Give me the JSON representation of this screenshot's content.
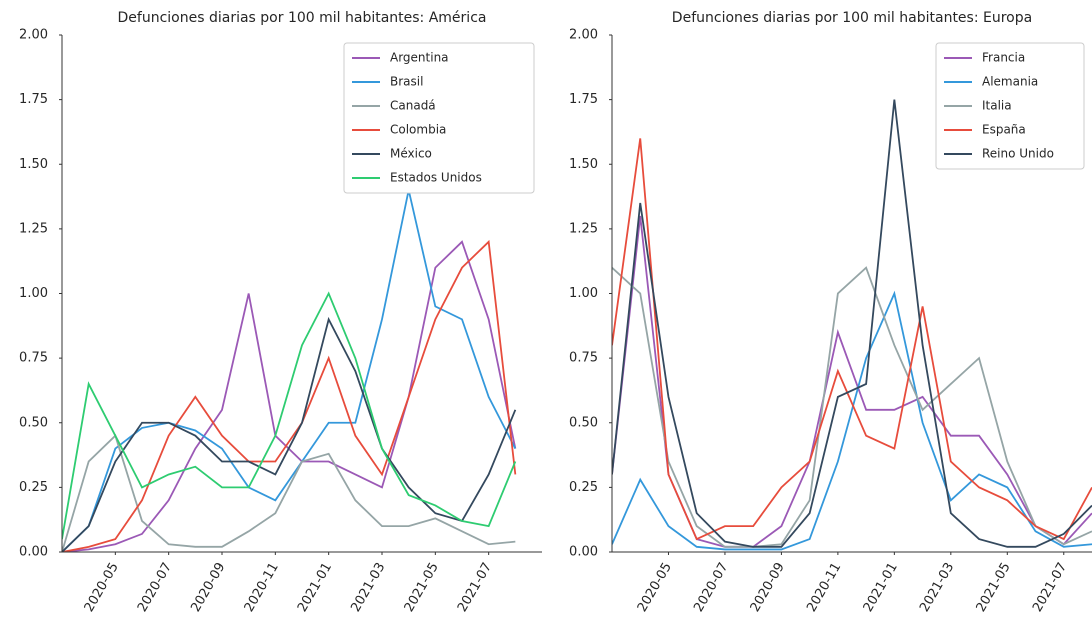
{
  "chart_data": [
    {
      "type": "line",
      "title": "Defunciones diarias por 100 mil habitantes: América",
      "x": [
        "2020-03",
        "2020-04",
        "2020-05",
        "2020-06",
        "2020-07",
        "2020-08",
        "2020-09",
        "2020-10",
        "2020-11",
        "2020-12",
        "2021-01",
        "2021-02",
        "2021-03",
        "2021-04",
        "2021-05",
        "2021-06",
        "2021-07",
        "2021-08"
      ],
      "xlim": [
        "2020-03",
        "2021-09"
      ],
      "xticks": [
        "2020-05",
        "2020-07",
        "2020-09",
        "2020-11",
        "2021-01",
        "2021-03",
        "2021-05",
        "2021-07"
      ],
      "ylim": [
        0,
        2
      ],
      "yticks": [
        {
          "value": 0,
          "label": "0.00"
        },
        {
          "value": 0.25,
          "label": "0.25"
        },
        {
          "value": 0.5,
          "label": "0.50"
        },
        {
          "value": 0.75,
          "label": "0.75"
        },
        {
          "value": 1,
          "label": "1.00"
        },
        {
          "value": 1.25,
          "label": "1.25"
        },
        {
          "value": 1.5,
          "label": "1.50"
        },
        {
          "value": 1.75,
          "label": "1.75"
        },
        {
          "value": 2,
          "label": "2.00"
        }
      ],
      "legend": "upper right",
      "series": [
        {
          "name": "Argentina",
          "color": "#9b59b6",
          "values": [
            0,
            0.01,
            0.03,
            0.07,
            0.2,
            0.4,
            0.55,
            1.0,
            0.45,
            0.35,
            0.35,
            0.3,
            0.25,
            0.6,
            1.1,
            1.2,
            0.9,
            0.4
          ]
        },
        {
          "name": "Brasil",
          "color": "#3498db",
          "values": [
            0,
            0.1,
            0.4,
            0.48,
            0.5,
            0.47,
            0.4,
            0.25,
            0.2,
            0.35,
            0.5,
            0.5,
            0.9,
            1.4,
            0.95,
            0.9,
            0.6,
            0.4
          ]
        },
        {
          "name": "Canadá",
          "color": "#95a5a6",
          "values": [
            0,
            0.35,
            0.45,
            0.12,
            0.03,
            0.02,
            0.02,
            0.08,
            0.15,
            0.35,
            0.38,
            0.2,
            0.1,
            0.1,
            0.13,
            0.08,
            0.03,
            0.04
          ]
        },
        {
          "name": "Colombia",
          "color": "#e74c3c",
          "values": [
            0,
            0.02,
            0.05,
            0.2,
            0.45,
            0.6,
            0.45,
            0.35,
            0.35,
            0.5,
            0.75,
            0.45,
            0.3,
            0.6,
            0.9,
            1.1,
            1.2,
            0.3
          ]
        },
        {
          "name": "México",
          "color": "#34495e",
          "values": [
            0,
            0.1,
            0.35,
            0.5,
            0.5,
            0.45,
            0.35,
            0.35,
            0.3,
            0.5,
            0.9,
            0.7,
            0.4,
            0.25,
            0.15,
            0.12,
            0.3,
            0.55
          ]
        },
        {
          "name": "Estados Unidos",
          "color": "#2ecc71",
          "values": [
            0.05,
            0.65,
            0.45,
            0.25,
            0.3,
            0.33,
            0.25,
            0.25,
            0.45,
            0.8,
            1.0,
            0.75,
            0.4,
            0.22,
            0.18,
            0.12,
            0.1,
            0.35
          ]
        }
      ]
    },
    {
      "type": "line",
      "title": "Defunciones diarias por 100 mil habitantes: Europa",
      "x": [
        "2020-03",
        "2020-04",
        "2020-05",
        "2020-06",
        "2020-07",
        "2020-08",
        "2020-09",
        "2020-10",
        "2020-11",
        "2020-12",
        "2021-01",
        "2021-02",
        "2021-03",
        "2021-04",
        "2021-05",
        "2021-06",
        "2021-07",
        "2021-08"
      ],
      "xlim": [
        "2020-03",
        "2021-08"
      ],
      "xticks": [
        "2020-05",
        "2020-07",
        "2020-09",
        "2020-11",
        "2021-01",
        "2021-03",
        "2021-05",
        "2021-07"
      ],
      "ylim": [
        0,
        2
      ],
      "yticks": [
        {
          "value": 0,
          "label": "0.00"
        },
        {
          "value": 0.25,
          "label": "0.25"
        },
        {
          "value": 0.5,
          "label": "0.50"
        },
        {
          "value": 0.75,
          "label": "0.75"
        },
        {
          "value": 1,
          "label": "1.00"
        },
        {
          "value": 1.25,
          "label": "1.25"
        },
        {
          "value": 1.5,
          "label": "1.50"
        },
        {
          "value": 1.75,
          "label": "1.75"
        },
        {
          "value": 2,
          "label": "2.00"
        }
      ],
      "legend": "upper right",
      "series": [
        {
          "name": "Francia",
          "color": "#9b59b6",
          "values": [
            0.3,
            1.3,
            0.3,
            0.05,
            0.02,
            0.02,
            0.1,
            0.35,
            0.85,
            0.55,
            0.55,
            0.6,
            0.45,
            0.45,
            0.3,
            0.1,
            0.03,
            0.15
          ]
        },
        {
          "name": "Alemania",
          "color": "#3498db",
          "values": [
            0.03,
            0.28,
            0.1,
            0.02,
            0.01,
            0.01,
            0.01,
            0.05,
            0.35,
            0.75,
            1.0,
            0.5,
            0.2,
            0.3,
            0.25,
            0.08,
            0.02,
            0.03
          ]
        },
        {
          "name": "Italia",
          "color": "#95a5a6",
          "values": [
            1.1,
            1.0,
            0.35,
            0.1,
            0.02,
            0.02,
            0.03,
            0.2,
            1.0,
            1.1,
            0.8,
            0.55,
            0.65,
            0.75,
            0.35,
            0.1,
            0.03,
            0.08
          ]
        },
        {
          "name": "España",
          "color": "#e74c3c",
          "values": [
            0.8,
            1.6,
            0.3,
            0.05,
            0.1,
            0.1,
            0.25,
            0.35,
            0.7,
            0.45,
            0.4,
            0.95,
            0.35,
            0.25,
            0.2,
            0.1,
            0.05,
            0.25
          ]
        },
        {
          "name": "Reino Unido",
          "color": "#34495e",
          "values": [
            0.3,
            1.35,
            0.6,
            0.15,
            0.04,
            0.02,
            0.02,
            0.15,
            0.6,
            0.65,
            1.75,
            0.8,
            0.15,
            0.05,
            0.02,
            0.02,
            0.07,
            0.18
          ]
        }
      ]
    }
  ]
}
